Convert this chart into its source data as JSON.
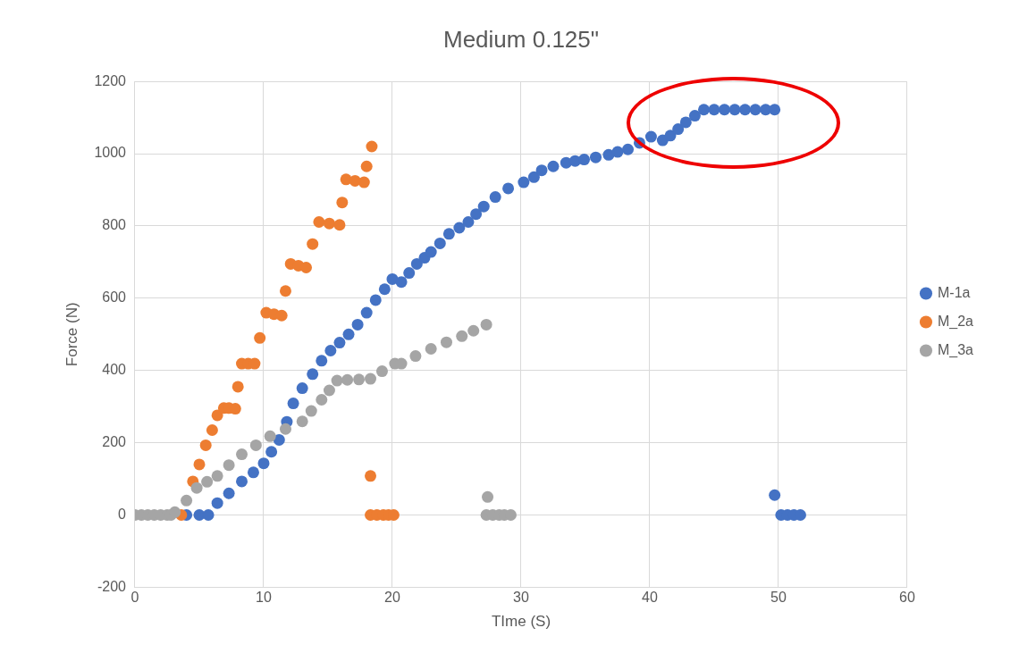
{
  "chart_data": {
    "type": "scatter",
    "title": "Medium 0.125\"",
    "xlabel": "TIme (S)",
    "ylabel": "Force (N)",
    "xlim": [
      0,
      60
    ],
    "xticks": [
      0,
      10,
      20,
      30,
      40,
      50,
      60
    ],
    "ylim": [
      -200,
      1200
    ],
    "yticks": [
      -200,
      0,
      200,
      400,
      600,
      800,
      1000,
      1200
    ],
    "grid": true,
    "legend": "right",
    "marker": "circle",
    "series": [
      {
        "name": "M-1a",
        "color": "#4472c4",
        "x": [
          4,
          5,
          5.7,
          6.4,
          7.3,
          8.3,
          9.2,
          10,
          10.6,
          11.2,
          11.8,
          12.3,
          13,
          13.8,
          14.5,
          15.2,
          15.9,
          16.6,
          17.3,
          18,
          18.7,
          19.4,
          20,
          20.7,
          21.3,
          21.9,
          22.5,
          23,
          23.7,
          24.4,
          25.2,
          25.9,
          26.5,
          27.1,
          28,
          29,
          30.2,
          31,
          31.6,
          32.5,
          33.5,
          34.2,
          34.9,
          35.8,
          36.8,
          37.5,
          38.3,
          39.2,
          40.1,
          41,
          41.6,
          42.2,
          42.8,
          43.5,
          44.2,
          45,
          45.8,
          46.6,
          47.4,
          48.2,
          49,
          49.7,
          49.7,
          50.2,
          50.7,
          51.2,
          51.7
        ],
        "values": [
          0,
          0,
          0,
          33,
          60,
          93,
          118,
          143,
          175,
          208,
          258,
          309,
          351,
          390,
          427,
          455,
          477,
          500,
          527,
          560,
          595,
          625,
          653,
          645,
          670,
          695,
          712,
          728,
          752,
          778,
          795,
          811,
          833,
          854,
          880,
          904,
          921,
          935,
          954,
          965,
          975,
          980,
          984,
          990,
          997,
          1005,
          1012,
          1030,
          1047,
          1037,
          1050,
          1068,
          1087,
          1105,
          1122,
          1122,
          1122,
          1122,
          1122,
          1122,
          1122,
          1122,
          55,
          0,
          0,
          0,
          0
        ]
      },
      {
        "name": "M_2a",
        "color": "#ed7d31",
        "x": [
          3.6,
          4.5,
          5,
          5.5,
          6,
          6.4,
          6.9,
          7.3,
          7.8,
          8,
          8.3,
          8.8,
          9.3,
          9.7,
          10.2,
          10.8,
          11.4,
          11.7,
          12.1,
          12.7,
          13.3,
          13.8,
          14.3,
          15.1,
          15.9,
          16.1,
          16.4,
          17.1,
          17.8,
          18,
          18.4,
          18.3,
          18.3,
          18.8,
          19.3,
          19.7,
          20.1
        ],
        "values": [
          0,
          93,
          140,
          193,
          235,
          276,
          296,
          296,
          294,
          355,
          419,
          419,
          419,
          490,
          560,
          556,
          552,
          620,
          695,
          690,
          685,
          750,
          811,
          807,
          803,
          865,
          929,
          925,
          921,
          965,
          1020,
          108,
          0,
          0,
          0,
          0,
          0
        ]
      },
      {
        "name": "M_3a",
        "color": "#a5a5a5",
        "x": [
          0,
          0.5,
          1,
          1.5,
          2,
          2.5,
          2.8,
          3.1,
          4,
          4.8,
          5.6,
          6.4,
          7.3,
          8.3,
          9.4,
          10.5,
          11.7,
          13,
          13.7,
          14.5,
          15.1,
          15.7,
          16.5,
          17.4,
          18.3,
          19.2,
          20.2,
          20.7,
          21.8,
          23,
          24.2,
          25.4,
          26.3,
          27.3,
          27.4,
          27.3,
          27.8,
          28.3,
          28.7,
          29.2
        ],
        "values": [
          0,
          0,
          0,
          0,
          0,
          0,
          0,
          8,
          40,
          75,
          92,
          108,
          138,
          168,
          193,
          218,
          238,
          259,
          288,
          319,
          345,
          372,
          374,
          375,
          377,
          398,
          419,
          419,
          440,
          460,
          478,
          495,
          510,
          527,
          50,
          0,
          0,
          0,
          0,
          0
        ]
      }
    ]
  }
}
